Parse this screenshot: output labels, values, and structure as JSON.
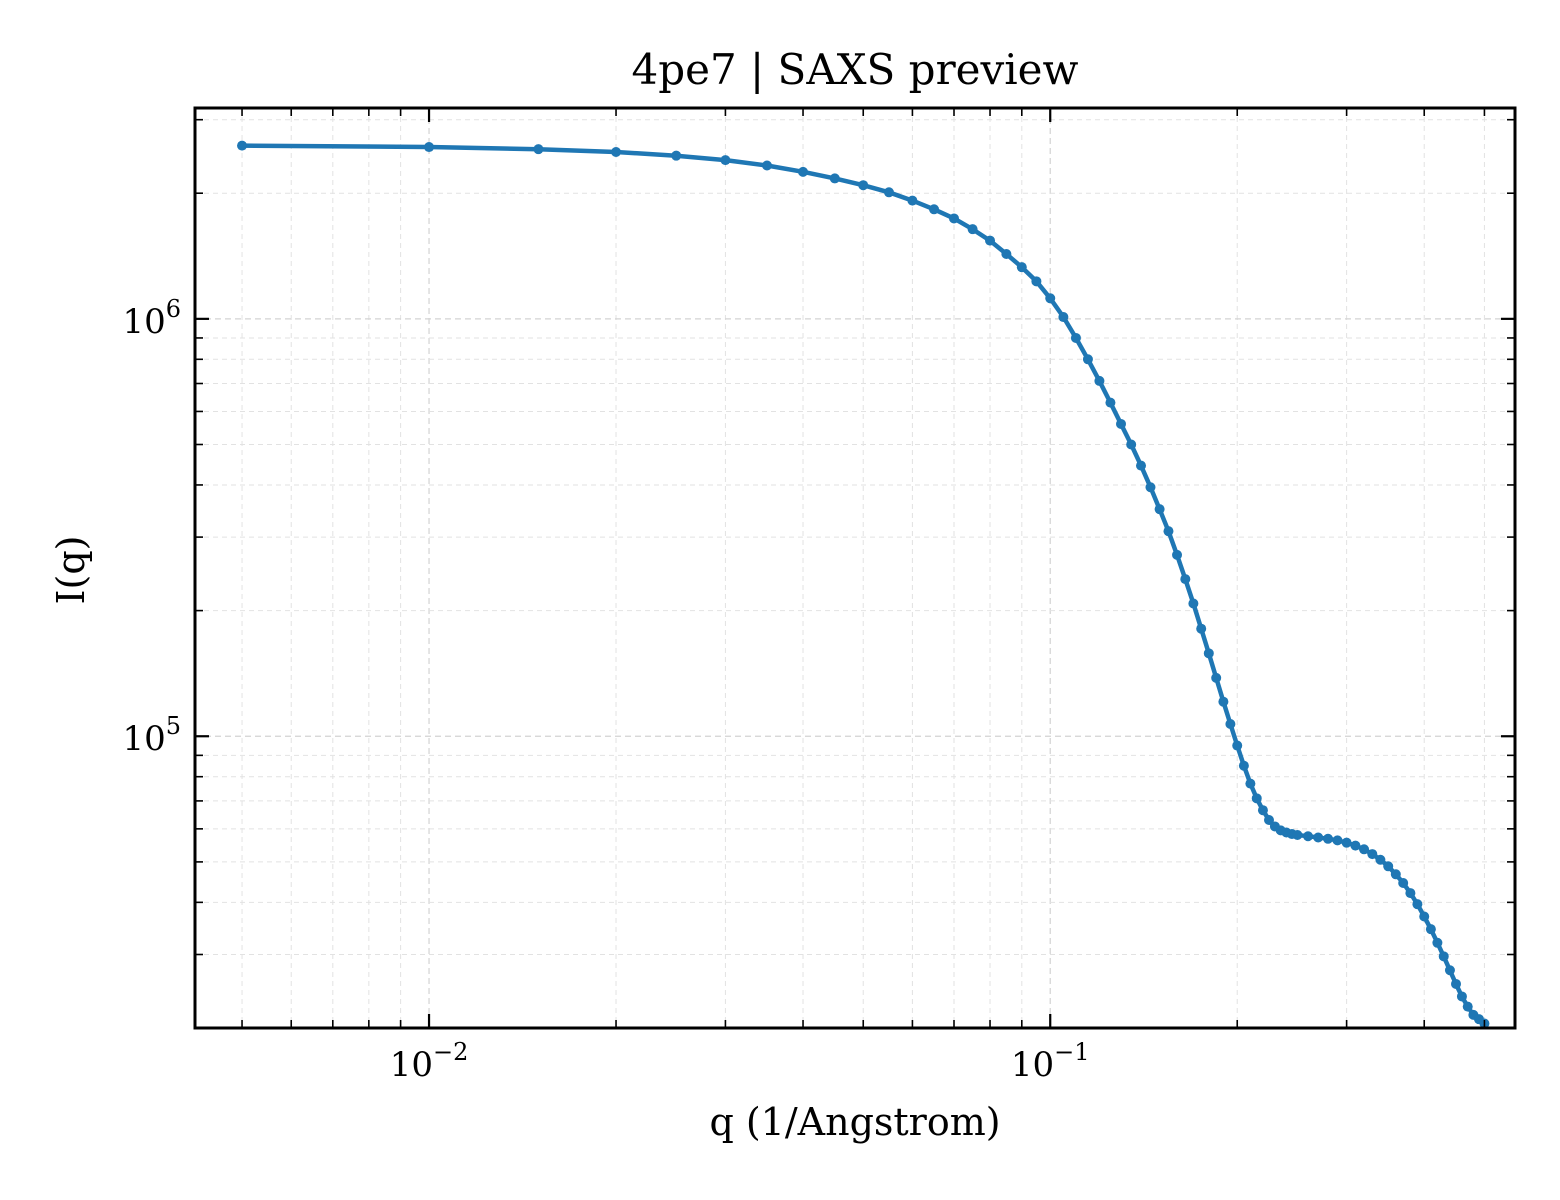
{
  "chart_data": {
    "type": "line",
    "title": "4pe7 | SAXS preview",
    "xlabel": "q (1/Angstrom)",
    "ylabel": "I(q)",
    "xscale": "log",
    "yscale": "log",
    "xlim": [
      0.0042,
      0.56
    ],
    "ylim": [
      20000,
      3200000
    ],
    "grid": true,
    "legend": "none",
    "x_ticks": [
      {
        "value": 0.01,
        "base": "10",
        "exp": "−2"
      },
      {
        "value": 0.1,
        "base": "10",
        "exp": "−1"
      }
    ],
    "y_ticks": [
      {
        "value": 100000,
        "base": "10",
        "exp": "5"
      },
      {
        "value": 1000000,
        "base": "10",
        "exp": "6"
      }
    ],
    "series": [
      {
        "color": "#1f77b4",
        "x": [
          0.005,
          0.01,
          0.015,
          0.02,
          0.025,
          0.03,
          0.035,
          0.04,
          0.045,
          0.05,
          0.055,
          0.06,
          0.065,
          0.07,
          0.075,
          0.08,
          0.085,
          0.09,
          0.095,
          0.1,
          0.105,
          0.11,
          0.115,
          0.12,
          0.125,
          0.13,
          0.135,
          0.14,
          0.145,
          0.15,
          0.155,
          0.16,
          0.165,
          0.17,
          0.175,
          0.18,
          0.185,
          0.19,
          0.195,
          0.2,
          0.205,
          0.21,
          0.215,
          0.22,
          0.225,
          0.23,
          0.235,
          0.24,
          0.245,
          0.25,
          0.26,
          0.27,
          0.28,
          0.29,
          0.3,
          0.31,
          0.32,
          0.33,
          0.34,
          0.35,
          0.36,
          0.37,
          0.38,
          0.39,
          0.4,
          0.41,
          0.42,
          0.43,
          0.44,
          0.45,
          0.46,
          0.47,
          0.48,
          0.49,
          0.5
        ],
        "y": [
          2600000,
          2580000,
          2550000,
          2510000,
          2460000,
          2400000,
          2330000,
          2250000,
          2170000,
          2090000,
          2010000,
          1920000,
          1830000,
          1740000,
          1640000,
          1540000,
          1430000,
          1330000,
          1230000,
          1120000,
          1010000,
          900000,
          800000,
          710000,
          630000,
          560000,
          500000,
          445000,
          395000,
          350000,
          310000,
          272000,
          238000,
          208000,
          181000,
          158000,
          138000,
          121000,
          107000,
          95000,
          85000,
          77000,
          71000,
          66500,
          63000,
          60800,
          59500,
          58800,
          58300,
          58000,
          57600,
          57200,
          56800,
          56300,
          55600,
          54700,
          53600,
          52200,
          50600,
          48800,
          46700,
          44500,
          42100,
          39600,
          37000,
          34500,
          32000,
          29700,
          27500,
          25500,
          23800,
          22500,
          21500,
          21000,
          20500
        ]
      }
    ]
  }
}
